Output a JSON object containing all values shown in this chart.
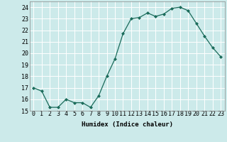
{
  "x": [
    0,
    1,
    2,
    3,
    4,
    5,
    6,
    7,
    8,
    9,
    10,
    11,
    12,
    13,
    14,
    15,
    16,
    17,
    18,
    19,
    20,
    21,
    22,
    23
  ],
  "y": [
    17.0,
    16.7,
    15.3,
    15.3,
    16.0,
    15.7,
    15.7,
    15.3,
    16.3,
    18.0,
    19.5,
    21.7,
    23.0,
    23.1,
    23.5,
    23.2,
    23.4,
    23.9,
    24.0,
    23.7,
    22.6,
    21.5,
    20.5,
    19.7
  ],
  "line_color": "#1a6b5a",
  "marker": "D",
  "marker_size": 2.0,
  "bg_color": "#cceaea",
  "grid_color": "#b0d8d8",
  "xlabel": "Humidex (Indice chaleur)",
  "ylim": [
    15,
    24.5
  ],
  "yticks": [
    15,
    16,
    17,
    18,
    19,
    20,
    21,
    22,
    23,
    24
  ],
  "xticks": [
    0,
    1,
    2,
    3,
    4,
    5,
    6,
    7,
    8,
    9,
    10,
    11,
    12,
    13,
    14,
    15,
    16,
    17,
    18,
    19,
    20,
    21,
    22,
    23
  ],
  "label_fontsize": 6.5,
  "tick_fontsize": 6.0
}
